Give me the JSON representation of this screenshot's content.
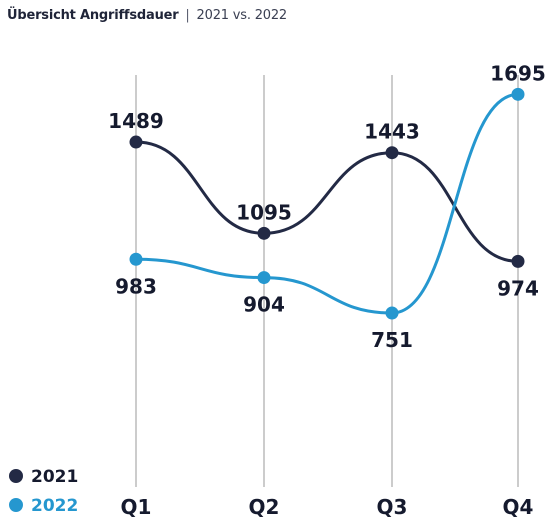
{
  "header": {
    "title": "Übersicht Angriffsdauer",
    "separator": "|",
    "subtitle": "2021 vs. 2022"
  },
  "colors": {
    "series_2021": "#232a45",
    "series_2022": "#2597cf",
    "gridline": "#9a9a9a",
    "text": "#151a2e"
  },
  "chart_data": {
    "type": "line",
    "title": "Übersicht Angriffsdauer",
    "subtitle": "2021 vs. 2022",
    "categories": [
      "Q1",
      "Q2",
      "Q3",
      "Q4"
    ],
    "series": [
      {
        "name": "2021",
        "values": [
          1489,
          1095,
          1443,
          974
        ],
        "color": "#232a45"
      },
      {
        "name": "2022",
        "values": [
          983,
          904,
          751,
          1695
        ],
        "color": "#2597cf"
      }
    ],
    "xlabel": "",
    "ylabel": "",
    "ylim": [
      0,
      1800
    ],
    "grid": "vertical",
    "legend": "bottom-left",
    "smooth": true
  }
}
